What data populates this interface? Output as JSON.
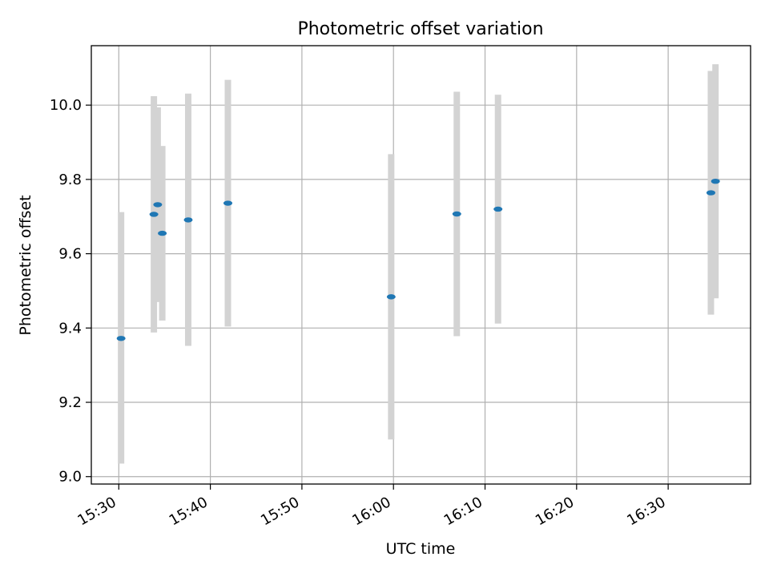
{
  "chart_data": {
    "type": "scatter",
    "title": "Photometric offset variation",
    "xlabel": "UTC time",
    "ylabel": "Photometric offset",
    "x_ticks": [
      "15:30",
      "15:40",
      "15:50",
      "16:00",
      "16:10",
      "16:20",
      "16:30"
    ],
    "y_ticks": [
      "9.0",
      "9.2",
      "9.4",
      "9.6",
      "9.8",
      "10.0"
    ],
    "xlim": [
      "15:27",
      "16:39"
    ],
    "ylim": [
      8.98,
      10.16
    ],
    "grid": true,
    "colors": {
      "point": "#1f77b4",
      "errorbar": "#d3d3d3",
      "grid": "#b0b0b0"
    },
    "points": [
      {
        "time": "15:30:15",
        "y": 9.372,
        "ylow": 9.035,
        "yhigh": 9.712
      },
      {
        "time": "15:33:50",
        "y": 9.706,
        "ylow": 9.388,
        "yhigh": 10.024
      },
      {
        "time": "15:34:15",
        "y": 9.732,
        "ylow": 9.47,
        "yhigh": 9.994
      },
      {
        "time": "15:34:45",
        "y": 9.655,
        "ylow": 9.42,
        "yhigh": 9.89
      },
      {
        "time": "15:37:35",
        "y": 9.691,
        "ylow": 9.352,
        "yhigh": 10.031
      },
      {
        "time": "15:41:55",
        "y": 9.736,
        "ylow": 9.404,
        "yhigh": 10.068
      },
      {
        "time": "15:59:45",
        "y": 9.484,
        "ylow": 9.1,
        "yhigh": 9.868
      },
      {
        "time": "16:06:55",
        "y": 9.707,
        "ylow": 9.378,
        "yhigh": 10.036
      },
      {
        "time": "16:11:25",
        "y": 9.72,
        "ylow": 9.412,
        "yhigh": 10.028
      },
      {
        "time": "16:34:40",
        "y": 9.764,
        "ylow": 9.436,
        "yhigh": 10.092
      },
      {
        "time": "16:35:10",
        "y": 9.795,
        "ylow": 9.48,
        "yhigh": 10.11
      }
    ]
  }
}
